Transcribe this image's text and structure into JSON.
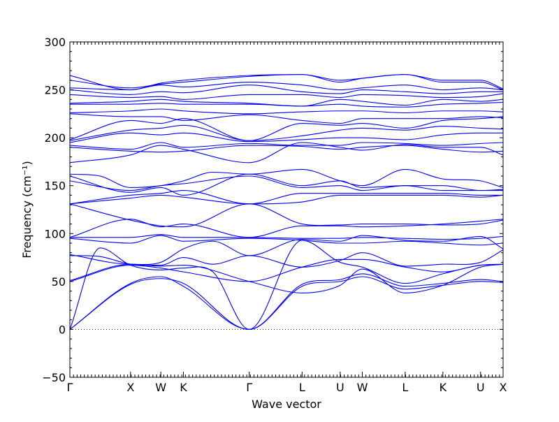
{
  "chart_data": {
    "type": "line",
    "title": "",
    "xlabel": "Wave vector",
    "ylabel": "Frequency (cm⁻¹)",
    "ylim": [
      -50,
      300
    ],
    "yticks": [
      -50,
      0,
      50,
      100,
      150,
      200,
      250,
      300
    ],
    "grid": false,
    "legend": "none",
    "color": "#0000ee",
    "xlim": [
      0,
      1
    ],
    "xticks": [
      {
        "label": "Γ",
        "x": 0.0
      },
      {
        "label": "X",
        "x": 0.14
      },
      {
        "label": "W",
        "x": 0.21
      },
      {
        "label": "K",
        "x": 0.262
      },
      {
        "label": "Γ",
        "x": 0.414
      },
      {
        "label": "L",
        "x": 0.536
      },
      {
        "label": "U",
        "x": 0.624
      },
      {
        "label": "W",
        "x": 0.675
      },
      {
        "label": "L",
        "x": 0.774
      },
      {
        "label": "K",
        "x": 0.861
      },
      {
        "label": "U",
        "x": 0.948
      },
      {
        "label": "X",
        "x": 1.0
      }
    ],
    "zero_line": {
      "y": 0,
      "style": "dotted"
    },
    "series": [
      {
        "x": [
          0,
          0.14,
          0.21,
          0.262,
          0.414,
          0.536,
          0.624,
          0.675,
          0.774,
          0.861,
          0.948,
          1.0
        ],
        "values": [
          0,
          47,
          53,
          48,
          0,
          45,
          50,
          55,
          42,
          46,
          50,
          49
        ]
      },
      {
        "x": [
          0,
          0.14,
          0.21,
          0.262,
          0.414,
          0.536,
          0.624,
          0.675,
          0.774,
          0.861,
          0.948,
          1.0
        ],
        "values": [
          0,
          48,
          55,
          45,
          0,
          47,
          52,
          58,
          45,
          48,
          52,
          50
        ]
      },
      {
        "x": [
          0,
          0.07,
          0.14,
          0.21,
          0.262,
          0.33,
          0.414,
          0.536,
          0.624,
          0.675,
          0.774,
          0.861,
          0.948,
          1.0
        ],
        "values": [
          0,
          85,
          67,
          62,
          64,
          60,
          0,
          93,
          70,
          65,
          48,
          58,
          67,
          68
        ]
      },
      {
        "x": [
          0,
          0.14,
          0.21,
          0.262,
          0.414,
          0.536,
          0.624,
          0.675,
          0.774,
          0.861,
          0.948,
          1.0
        ],
        "values": [
          50,
          67,
          64,
          60,
          50,
          65,
          73,
          73,
          65,
          60,
          67,
          68
        ]
      },
      {
        "x": [
          0,
          0.14,
          0.21,
          0.262,
          0.414,
          0.536,
          0.624,
          0.675,
          0.774,
          0.861,
          0.948,
          1.0
        ],
        "values": [
          51,
          68,
          66,
          67,
          50,
          38,
          46,
          63,
          38,
          46,
          65,
          68
        ]
      },
      {
        "x": [
          0,
          0.07,
          0.14,
          0.21,
          0.262,
          0.33,
          0.414,
          0.536,
          0.624,
          0.675,
          0.774,
          0.861,
          0.948,
          1.0
        ],
        "values": [
          77,
          76,
          68,
          67,
          75,
          68,
          77,
          65,
          72,
          80,
          66,
          68,
          70,
          83
        ]
      },
      {
        "x": [
          0,
          0.14,
          0.21,
          0.262,
          0.33,
          0.414,
          0.536,
          0.624,
          0.675,
          0.774,
          0.861,
          0.948,
          1.0
        ],
        "values": [
          78,
          68,
          70,
          84,
          92,
          77,
          94,
          92,
          98,
          93,
          92,
          97,
          84
        ]
      },
      {
        "x": [
          0,
          0.14,
          0.21,
          0.262,
          0.414,
          0.536,
          0.624,
          0.675,
          0.774,
          0.861,
          0.948,
          1.0
        ],
        "values": [
          95,
          90,
          98,
          92,
          95,
          93,
          90,
          90,
          92,
          90,
          88,
          90
        ]
      },
      {
        "x": [
          0,
          0.14,
          0.21,
          0.262,
          0.414,
          0.536,
          0.624,
          0.675,
          0.774,
          0.861,
          0.948,
          1.0
        ],
        "values": [
          96,
          96,
          99,
          96,
          96,
          95,
          95,
          96,
          95,
          94,
          95,
          97
        ]
      },
      {
        "x": [
          0,
          0.14,
          0.21,
          0.262,
          0.414,
          0.536,
          0.624,
          0.675,
          0.774,
          0.861,
          0.948,
          1.0
        ],
        "values": [
          96,
          115,
          107,
          110,
          96,
          108,
          108,
          107,
          108,
          110,
          113,
          115
        ]
      },
      {
        "x": [
          0,
          0.14,
          0.21,
          0.262,
          0.414,
          0.536,
          0.624,
          0.675,
          0.774,
          0.861,
          0.948,
          1.0
        ],
        "values": [
          131,
          114,
          108,
          107,
          131,
          110,
          109,
          110,
          110,
          109,
          110,
          114
        ]
      },
      {
        "x": [
          0,
          0.14,
          0.21,
          0.262,
          0.414,
          0.536,
          0.624,
          0.675,
          0.774,
          0.861,
          0.948,
          1.0
        ],
        "values": [
          131,
          137,
          140,
          138,
          131,
          133,
          140,
          140,
          140,
          140,
          138,
          140
        ]
      },
      {
        "x": [
          0,
          0.14,
          0.21,
          0.262,
          0.414,
          0.536,
          0.624,
          0.675,
          0.774,
          0.861,
          0.948,
          1.0
        ],
        "values": [
          131,
          140,
          142,
          145,
          131,
          142,
          142,
          142,
          142,
          142,
          140,
          140
        ]
      },
      {
        "x": [
          0,
          0.14,
          0.21,
          0.262,
          0.414,
          0.536,
          0.624,
          0.675,
          0.774,
          0.861,
          0.948,
          1.0
        ],
        "values": [
          155,
          145,
          150,
          152,
          160,
          148,
          150,
          145,
          150,
          150,
          145,
          146
        ]
      },
      {
        "x": [
          0,
          0.14,
          0.21,
          0.262,
          0.414,
          0.536,
          0.624,
          0.675,
          0.774,
          0.861,
          0.948,
          1.0
        ],
        "values": [
          160,
          143,
          148,
          140,
          162,
          150,
          155,
          148,
          150,
          145,
          145,
          145
        ]
      },
      {
        "x": [
          0,
          0.07,
          0.14,
          0.21,
          0.262,
          0.33,
          0.414,
          0.536,
          0.624,
          0.675,
          0.774,
          0.861,
          0.948,
          1.0
        ],
        "values": [
          162,
          160,
          148,
          150,
          155,
          164,
          162,
          167,
          155,
          150,
          167,
          157,
          155,
          148
        ]
      },
      {
        "x": [
          0,
          0.14,
          0.21,
          0.262,
          0.414,
          0.536,
          0.624,
          0.675,
          0.774,
          0.861,
          0.948,
          1.0
        ],
        "values": [
          174,
          182,
          192,
          188,
          174,
          195,
          190,
          187,
          193,
          190,
          190,
          182
        ]
      },
      {
        "x": [
          0,
          0.14,
          0.21,
          0.262,
          0.414,
          0.536,
          0.624,
          0.675,
          0.774,
          0.861,
          0.948,
          1.0
        ],
        "values": [
          190,
          186,
          185,
          186,
          192,
          191,
          188,
          190,
          192,
          188,
          185,
          186
        ]
      },
      {
        "x": [
          0,
          0.14,
          0.21,
          0.262,
          0.414,
          0.536,
          0.624,
          0.675,
          0.774,
          0.861,
          0.948,
          1.0
        ],
        "values": [
          192,
          188,
          195,
          190,
          194,
          192,
          192,
          195,
          194,
          192,
          194,
          195
        ]
      },
      {
        "x": [
          0,
          0.14,
          0.21,
          0.262,
          0.414,
          0.536,
          0.624,
          0.675,
          0.774,
          0.861,
          0.948,
          1.0
        ],
        "values": [
          195,
          205,
          203,
          205,
          196,
          198,
          200,
          200,
          198,
          203,
          205,
          205
        ]
      },
      {
        "x": [
          0,
          0.14,
          0.21,
          0.262,
          0.414,
          0.536,
          0.624,
          0.675,
          0.774,
          0.861,
          0.948,
          1.0
        ],
        "values": [
          197,
          208,
          210,
          213,
          197,
          202,
          208,
          210,
          208,
          212,
          210,
          209
        ]
      },
      {
        "x": [
          0,
          0.14,
          0.21,
          0.262,
          0.414,
          0.536,
          0.624,
          0.675,
          0.774,
          0.861,
          0.948,
          1.0
        ],
        "values": [
          198,
          218,
          215,
          220,
          197,
          215,
          213,
          215,
          210,
          218,
          220,
          222
        ]
      },
      {
        "x": [
          0,
          0.14,
          0.21,
          0.262,
          0.414,
          0.536,
          0.624,
          0.675,
          0.774,
          0.861,
          0.948,
          1.0
        ],
        "values": [
          225,
          222,
          222,
          218,
          224,
          218,
          215,
          220,
          220,
          220,
          222,
          221
        ]
      },
      {
        "x": [
          0,
          0.14,
          0.21,
          0.262,
          0.414,
          0.536,
          0.624,
          0.675,
          0.774,
          0.861,
          0.948,
          1.0
        ],
        "values": [
          226,
          228,
          230,
          228,
          225,
          227,
          228,
          228,
          226,
          228,
          228,
          227
        ]
      },
      {
        "x": [
          0,
          0.14,
          0.21,
          0.262,
          0.414,
          0.536,
          0.624,
          0.675,
          0.774,
          0.861,
          0.948,
          1.0
        ],
        "values": [
          235,
          235,
          236,
          235,
          235,
          233,
          235,
          233,
          232,
          235,
          236,
          237
        ]
      },
      {
        "x": [
          0,
          0.14,
          0.21,
          0.262,
          0.414,
          0.536,
          0.624,
          0.675,
          0.774,
          0.861,
          0.948,
          1.0
        ],
        "values": [
          236,
          238,
          240,
          238,
          236,
          233,
          240,
          238,
          234,
          240,
          238,
          240
        ]
      },
      {
        "x": [
          0,
          0.14,
          0.21,
          0.262,
          0.414,
          0.536,
          0.624,
          0.675,
          0.774,
          0.861,
          0.948,
          1.0
        ],
        "values": [
          245,
          242,
          243,
          240,
          245,
          245,
          242,
          245,
          244,
          242,
          243,
          246
        ]
      },
      {
        "x": [
          0,
          0.14,
          0.21,
          0.262,
          0.414,
          0.536,
          0.624,
          0.675,
          0.774,
          0.861,
          0.948,
          1.0
        ],
        "values": [
          250,
          245,
          248,
          247,
          255,
          248,
          246,
          250,
          248,
          246,
          248,
          248
        ]
      },
      {
        "x": [
          0,
          0.14,
          0.21,
          0.262,
          0.414,
          0.536,
          0.624,
          0.675,
          0.774,
          0.861,
          0.948,
          1.0
        ],
        "values": [
          252,
          250,
          255,
          253,
          258,
          255,
          250,
          252,
          255,
          250,
          252,
          250
        ]
      },
      {
        "x": [
          0,
          0.14,
          0.21,
          0.262,
          0.414,
          0.536,
          0.624,
          0.675,
          0.774,
          0.861,
          0.948,
          1.0
        ],
        "values": [
          260,
          252,
          256,
          258,
          264,
          266,
          258,
          262,
          266,
          258,
          258,
          250
        ]
      },
      {
        "x": [
          0,
          0.14,
          0.21,
          0.262,
          0.414,
          0.536,
          0.624,
          0.675,
          0.774,
          0.861,
          0.948,
          1.0
        ],
        "values": [
          265,
          250,
          257,
          260,
          265,
          266,
          260,
          262,
          266,
          260,
          260,
          251
        ]
      }
    ]
  }
}
